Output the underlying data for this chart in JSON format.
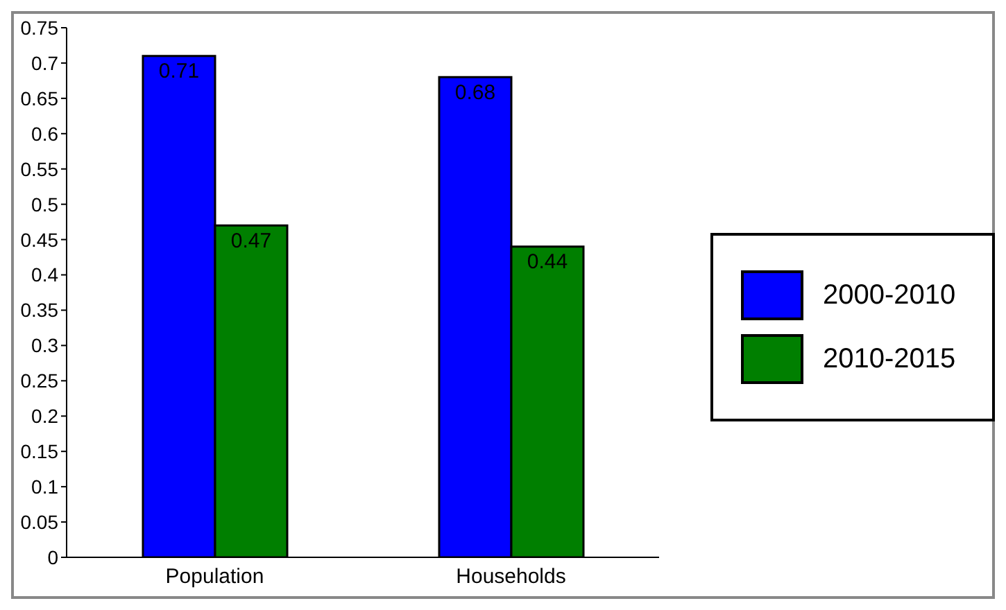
{
  "chart_data": {
    "type": "bar",
    "categories": [
      "Population",
      "Households"
    ],
    "series": [
      {
        "name": "2000-2010",
        "color": "#0000ff",
        "values": [
          0.71,
          0.68
        ]
      },
      {
        "name": "2010-2015",
        "color": "#007f00",
        "values": [
          0.47,
          0.44
        ]
      }
    ],
    "ylim": [
      0,
      0.75
    ],
    "yticks": [
      0,
      0.05,
      0.1,
      0.15,
      0.2,
      0.25,
      0.3,
      0.35,
      0.4,
      0.45,
      0.5,
      0.55,
      0.6,
      0.65,
      0.7,
      0.75
    ],
    "data_labels": true,
    "legend": "right",
    "grid": false
  }
}
